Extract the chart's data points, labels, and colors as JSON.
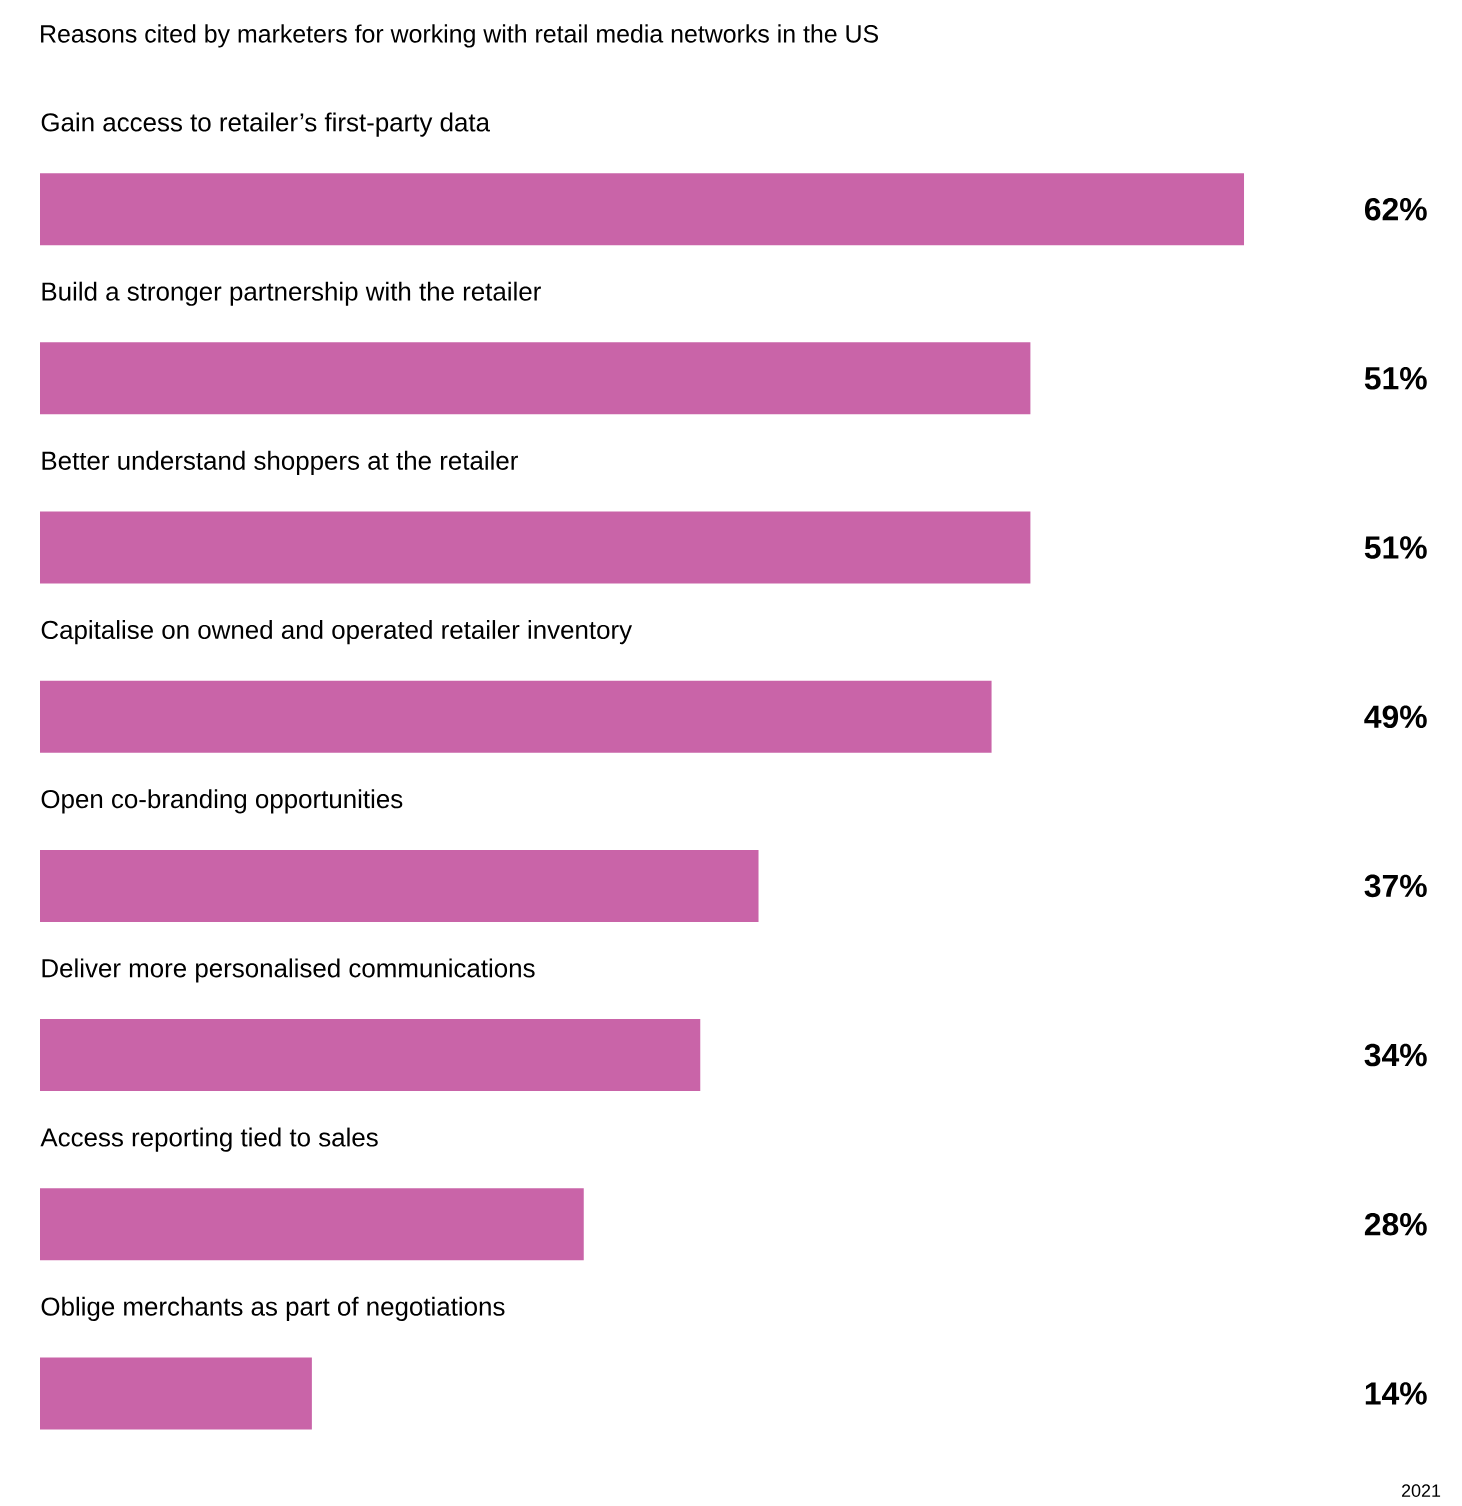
{
  "chart_data": {
    "type": "bar",
    "orientation": "horizontal",
    "title": "Reasons cited by marketers for working with retail media networks in the US",
    "categories": [
      "Gain access to retailer’s first-party data",
      "Build a stronger partnership with the retailer",
      "Better understand shoppers at the retailer",
      "Capitalise on owned and operated retailer inventory",
      "Open co-branding opportunities",
      "Deliver more personalised communications",
      "Access reporting tied to sales",
      "Oblige merchants as part of negotiations"
    ],
    "values": [
      62,
      51,
      51,
      49,
      37,
      34,
      28,
      14
    ],
    "value_labels": [
      "62%",
      "51%",
      "51%",
      "49%",
      "37%",
      "34%",
      "28%",
      "14%"
    ],
    "color": "#c964a8",
    "annotations": [
      "2021"
    ]
  }
}
